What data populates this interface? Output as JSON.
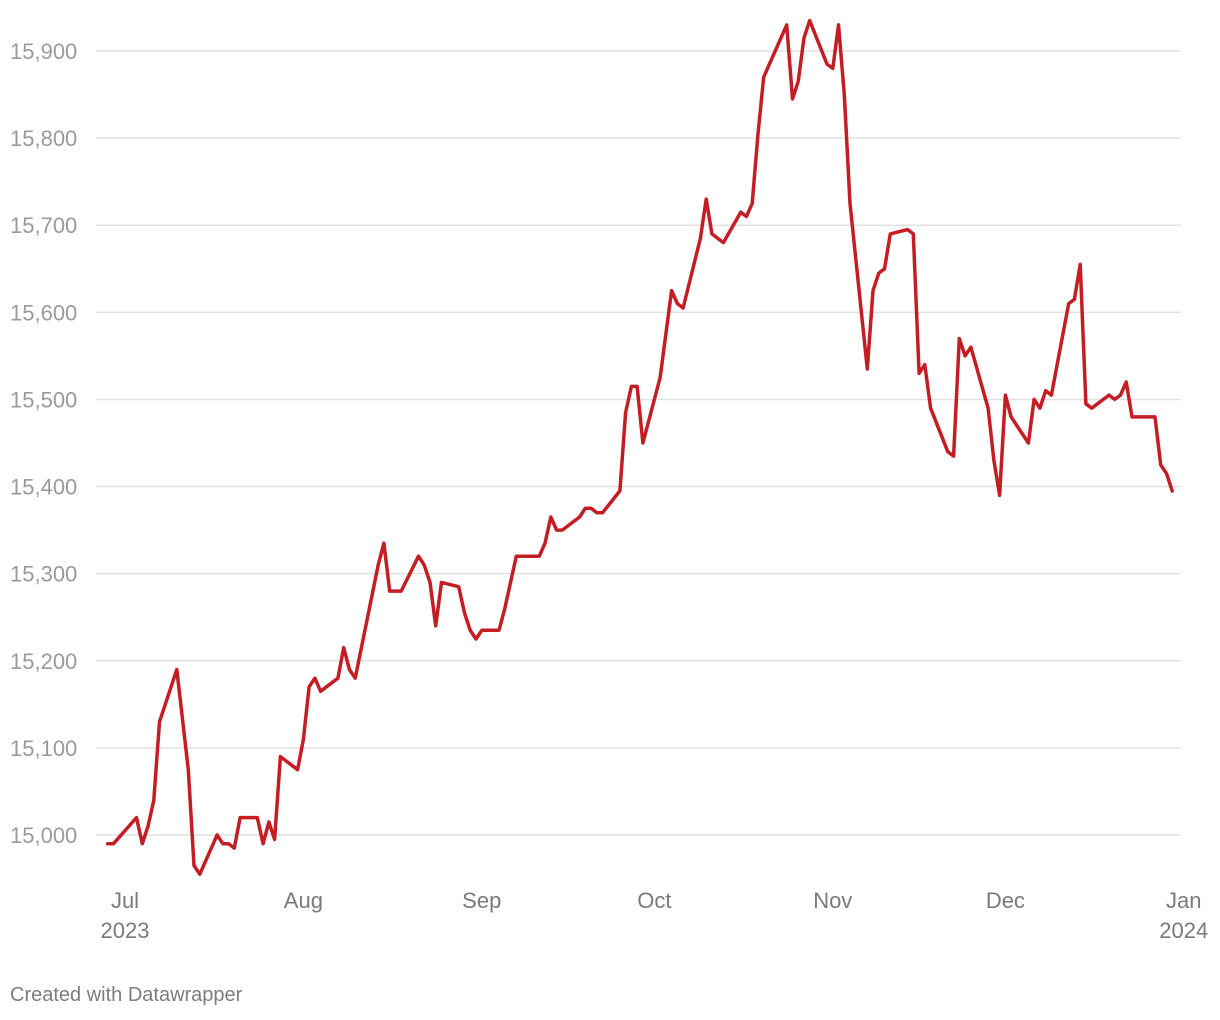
{
  "chart_data": {
    "type": "line",
    "title": "",
    "xlabel": "",
    "ylabel": "",
    "ylim": [
      14950,
      15935
    ],
    "xlim": [
      "2023-07-01",
      "2023-12-31"
    ],
    "grid": true,
    "y_ticks": [
      {
        "value": 15000,
        "label": "15,000"
      },
      {
        "value": 15100,
        "label": "15,100"
      },
      {
        "value": 15200,
        "label": "15,200"
      },
      {
        "value": 15300,
        "label": "15,300"
      },
      {
        "value": 15400,
        "label": "15,400"
      },
      {
        "value": 15500,
        "label": "15,500"
      },
      {
        "value": 15600,
        "label": "15,600"
      },
      {
        "value": 15700,
        "label": "15,700"
      },
      {
        "value": 15800,
        "label": "15,800"
      },
      {
        "value": 15900,
        "label": "15,900"
      }
    ],
    "x_ticks": [
      {
        "date": "2023-07-01",
        "label": "Jul",
        "year": "2023"
      },
      {
        "date": "2023-08-01",
        "label": "Aug",
        "year": ""
      },
      {
        "date": "2023-09-01",
        "label": "Sep",
        "year": ""
      },
      {
        "date": "2023-10-01",
        "label": "Oct",
        "year": ""
      },
      {
        "date": "2023-11-01",
        "label": "Nov",
        "year": ""
      },
      {
        "date": "2023-12-01",
        "label": "Dec",
        "year": ""
      },
      {
        "date": "2024-01-01",
        "label": "Jan",
        "year": "2024"
      }
    ],
    "series": [
      {
        "color": "#c41e24",
        "points": [
          [
            "2023-06-28",
            14990
          ],
          [
            "2023-06-29",
            14990
          ],
          [
            "2023-07-03",
            15020
          ],
          [
            "2023-07-04",
            14990
          ],
          [
            "2023-07-05",
            15010
          ],
          [
            "2023-07-06",
            15040
          ],
          [
            "2023-07-07",
            15130
          ],
          [
            "2023-07-10",
            15190
          ],
          [
            "2023-07-12",
            15075
          ],
          [
            "2023-07-13",
            14965
          ],
          [
            "2023-07-14",
            14955
          ],
          [
            "2023-07-17",
            15000
          ],
          [
            "2023-07-18",
            14990
          ],
          [
            "2023-07-19",
            14990
          ],
          [
            "2023-07-20",
            14985
          ],
          [
            "2023-07-21",
            15020
          ],
          [
            "2023-07-24",
            15020
          ],
          [
            "2023-07-25",
            14990
          ],
          [
            "2023-07-26",
            15015
          ],
          [
            "2023-07-27",
            14995
          ],
          [
            "2023-07-28",
            15090
          ],
          [
            "2023-07-31",
            15075
          ],
          [
            "2023-08-01",
            15110
          ],
          [
            "2023-08-02",
            15170
          ],
          [
            "2023-08-03",
            15180
          ],
          [
            "2023-08-04",
            15165
          ],
          [
            "2023-08-07",
            15180
          ],
          [
            "2023-08-08",
            15215
          ],
          [
            "2023-08-09",
            15190
          ],
          [
            "2023-08-10",
            15180
          ],
          [
            "2023-08-14",
            15310
          ],
          [
            "2023-08-15",
            15335
          ],
          [
            "2023-08-16",
            15280
          ],
          [
            "2023-08-18",
            15280
          ],
          [
            "2023-08-21",
            15320
          ],
          [
            "2023-08-22",
            15310
          ],
          [
            "2023-08-23",
            15290
          ],
          [
            "2023-08-24",
            15240
          ],
          [
            "2023-08-25",
            15290
          ],
          [
            "2023-08-28",
            15285
          ],
          [
            "2023-08-29",
            15255
          ],
          [
            "2023-08-30",
            15235
          ],
          [
            "2023-08-31",
            15225
          ],
          [
            "2023-09-01",
            15235
          ],
          [
            "2023-09-04",
            15235
          ],
          [
            "2023-09-05",
            15260
          ],
          [
            "2023-09-07",
            15320
          ],
          [
            "2023-09-11",
            15320
          ],
          [
            "2023-09-12",
            15335
          ],
          [
            "2023-09-13",
            15365
          ],
          [
            "2023-09-14",
            15350
          ],
          [
            "2023-09-15",
            15350
          ],
          [
            "2023-09-18",
            15365
          ],
          [
            "2023-09-19",
            15375
          ],
          [
            "2023-09-20",
            15375
          ],
          [
            "2023-09-21",
            15370
          ],
          [
            "2023-09-22",
            15370
          ],
          [
            "2023-09-25",
            15395
          ],
          [
            "2023-09-26",
            15485
          ],
          [
            "2023-09-27",
            15515
          ],
          [
            "2023-09-28",
            15515
          ],
          [
            "2023-09-29",
            15450
          ],
          [
            "2023-10-02",
            15525
          ],
          [
            "2023-10-04",
            15625
          ],
          [
            "2023-10-05",
            15610
          ],
          [
            "2023-10-06",
            15605
          ],
          [
            "2023-10-09",
            15685
          ],
          [
            "2023-10-10",
            15730
          ],
          [
            "2023-10-11",
            15690
          ],
          [
            "2023-10-13",
            15680
          ],
          [
            "2023-10-16",
            15715
          ],
          [
            "2023-10-17",
            15710
          ],
          [
            "2023-10-18",
            15725
          ],
          [
            "2023-10-19",
            15805
          ],
          [
            "2023-10-20",
            15870
          ],
          [
            "2023-10-24",
            15930
          ],
          [
            "2023-10-25",
            15845
          ],
          [
            "2023-10-26",
            15865
          ],
          [
            "2023-10-27",
            15915
          ],
          [
            "2023-10-28",
            15935
          ],
          [
            "2023-10-31",
            15885
          ],
          [
            "2023-11-01",
            15880
          ],
          [
            "2023-11-02",
            15930
          ],
          [
            "2023-11-03",
            15850
          ],
          [
            "2023-11-04",
            15725
          ],
          [
            "2023-11-07",
            15535
          ],
          [
            "2023-11-08",
            15625
          ],
          [
            "2023-11-09",
            15645
          ],
          [
            "2023-11-10",
            15650
          ],
          [
            "2023-11-11",
            15690
          ],
          [
            "2023-11-14",
            15695
          ],
          [
            "2023-11-15",
            15690
          ],
          [
            "2023-11-16",
            15530
          ],
          [
            "2023-11-17",
            15540
          ],
          [
            "2023-11-18",
            15490
          ],
          [
            "2023-11-21",
            15440
          ],
          [
            "2023-11-22",
            15435
          ],
          [
            "2023-11-23",
            15570
          ],
          [
            "2023-11-24",
            15550
          ],
          [
            "2023-11-25",
            15560
          ],
          [
            "2023-11-28",
            15490
          ],
          [
            "2023-11-29",
            15430
          ],
          [
            "2023-11-30",
            15390
          ],
          [
            "2023-12-01",
            15505
          ],
          [
            "2023-12-02",
            15480
          ],
          [
            "2023-12-05",
            15450
          ],
          [
            "2023-12-06",
            15500
          ],
          [
            "2023-12-07",
            15490
          ],
          [
            "2023-12-08",
            15510
          ],
          [
            "2023-12-09",
            15505
          ],
          [
            "2023-12-12",
            15610
          ],
          [
            "2023-12-13",
            15615
          ],
          [
            "2023-12-14",
            15655
          ],
          [
            "2023-12-15",
            15495
          ],
          [
            "2023-12-16",
            15490
          ],
          [
            "2023-12-19",
            15505
          ],
          [
            "2023-12-20",
            15500
          ],
          [
            "2023-12-21",
            15505
          ],
          [
            "2023-12-22",
            15520
          ],
          [
            "2023-12-23",
            15480
          ],
          [
            "2023-12-27",
            15480
          ],
          [
            "2023-12-28",
            15425
          ],
          [
            "2023-12-29",
            15415
          ],
          [
            "2023-12-30",
            15395
          ]
        ]
      }
    ]
  },
  "footer": {
    "credit": "Created with Datawrapper"
  }
}
